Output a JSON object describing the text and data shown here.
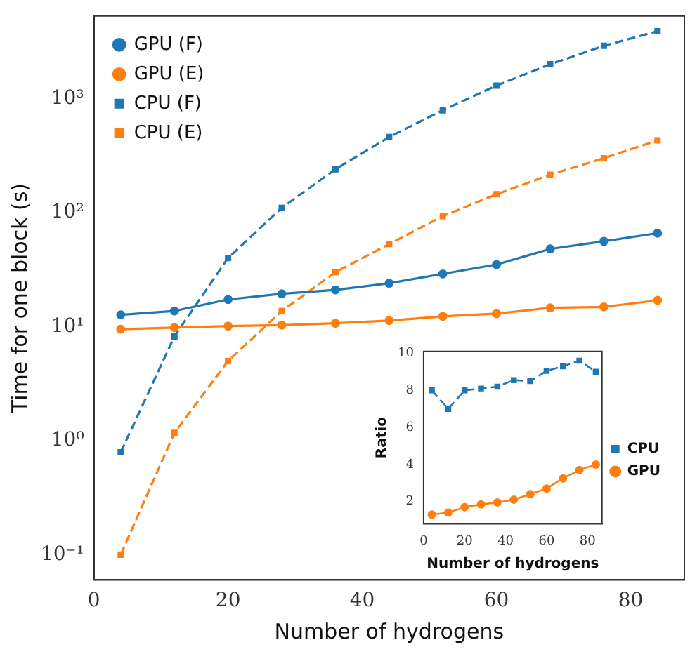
{
  "chart_data": [
    {
      "type": "line",
      "xlabel": "Number of hydrogens",
      "ylabel": "Time for one block (s)",
      "x": [
        4,
        12,
        20,
        28,
        36,
        44,
        52,
        60,
        68,
        76,
        84
      ],
      "xlim": [
        0,
        88
      ],
      "xticks": [
        0,
        20,
        40,
        60,
        80
      ],
      "ylim": [
        0.06,
        5300
      ],
      "yticks": [
        {
          "value": 0.1,
          "label": "10⁻¹"
        },
        {
          "value": 1,
          "label": "10⁰"
        },
        {
          "value": 10,
          "label": "10¹"
        },
        {
          "value": 100,
          "label": "10²"
        },
        {
          "value": 1000,
          "label": "10³"
        }
      ],
      "log": "y",
      "legend": "top left",
      "series": [
        {
          "name": "GPU (F)",
          "color": "#1f77b4",
          "marker": "circle",
          "line_style": "solid",
          "values": [
            12.7,
            13.7,
            17.3,
            19.4,
            21,
            24,
            29,
            35,
            48,
            56,
            66
          ]
        },
        {
          "name": "GPU (E)",
          "color": "#ff7f0e",
          "marker": "circle",
          "line_style": "solid",
          "values": [
            9.5,
            9.8,
            10.1,
            10.3,
            10.7,
            11.3,
            12.3,
            13,
            14.6,
            14.9,
            17
          ]
        },
        {
          "name": "CPU (F)",
          "color": "#1f77b4",
          "marker": "square",
          "line_style": "dashed",
          "values": [
            0.79,
            8.2,
            40,
            110,
            240,
            460,
            790,
            1300,
            2000,
            2900,
            3900
          ]
        },
        {
          "name": "CPU (E)",
          "color": "#ff7f0e",
          "marker": "square",
          "line_style": "dashed",
          "values": [
            0.1,
            1.17,
            5,
            13.7,
            30,
            53,
            93,
            145,
            215,
            300,
            430
          ]
        }
      ]
    },
    {
      "type": "line",
      "xlabel": "Number of hydrogens",
      "ylabel": "Ratio",
      "x": [
        4,
        12,
        20,
        28,
        36,
        44,
        52,
        60,
        68,
        76,
        84
      ],
      "xlim": [
        0,
        87
      ],
      "xticks": [
        0,
        20,
        40,
        60,
        80
      ],
      "ylim": [
        0.8,
        10.1
      ],
      "yticks": [
        2,
        4,
        6,
        8,
        10
      ],
      "legend": "right",
      "series": [
        {
          "name": "CPU",
          "color": "#1f77b4",
          "marker": "square",
          "line_style": "dashed",
          "values": [
            8,
            7,
            8,
            8.1,
            8.2,
            8.55,
            8.5,
            9.05,
            9.3,
            9.6,
            9.0
          ]
        },
        {
          "name": "GPU",
          "color": "#ff7f0e",
          "marker": "circle",
          "line_style": "solid",
          "values": [
            1.3,
            1.4,
            1.7,
            1.85,
            1.95,
            2.1,
            2.4,
            2.7,
            3.25,
            3.7,
            4.0
          ]
        }
      ]
    }
  ]
}
